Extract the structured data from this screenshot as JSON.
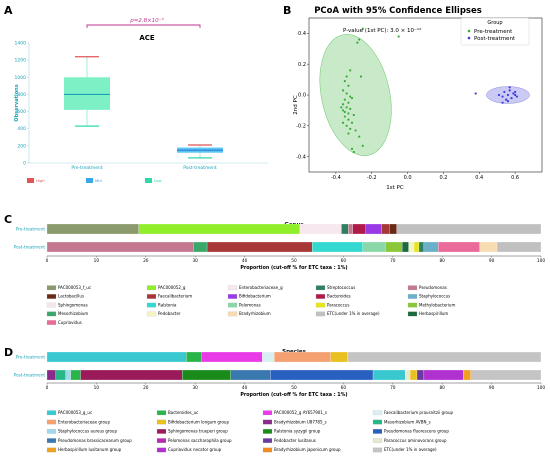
{
  "colors": {
    "cyan_text": "#1aa3b8",
    "box_green": "#7ef0c5",
    "box_median": "#1aa3b8",
    "box_blue": "#5cc6f2",
    "red_whisker": "#e0545a",
    "bracket_magenta": "#c0308c",
    "pre_green": "#3aaa3a",
    "ellipse_green": "#9ad99a",
    "post_blue": "#3a3ae0",
    "ellipse_blue": "#b8b8f0"
  },
  "panels": {
    "a": "A",
    "b": "B",
    "c": "C",
    "d": "D"
  },
  "chart_data": [
    {
      "id": "ace",
      "type": "box",
      "title": "ACE",
      "ylabel": "Observations",
      "categories": [
        "Pre-treatment",
        "Post-treatment"
      ],
      "ylim": [
        0,
        1400
      ],
      "yticks": [
        0,
        200,
        400,
        600,
        800,
        1000,
        1200,
        1400
      ],
      "boxes": [
        {
          "name": "Pre-treatment",
          "min": 430,
          "q1": 620,
          "median": 800,
          "q3": 1000,
          "max": 1240,
          "fill": "#7ef0c5"
        },
        {
          "name": "Post-treatment",
          "min": 60,
          "q1": 120,
          "median": 150,
          "q3": 180,
          "max": 210,
          "fill": "#5cc6f2"
        }
      ],
      "pvalue_label": "p=2.8×10⁻⁵",
      "legend": [
        "High",
        "Mid",
        "Low"
      ],
      "legend_colors": [
        "#e0545a",
        "#3aa8e8",
        "#2fd8a8"
      ]
    },
    {
      "id": "pcoa",
      "type": "scatter",
      "title": "PCoA with 95% Confidence Ellipses",
      "xlabel": "1st PC",
      "ylabel": "2nd PC",
      "annotation": "P-value (1st PC): 3.0 × 10⁻¹²",
      "xlim": [
        -0.55,
        0.75
      ],
      "ylim": [
        -0.5,
        0.5
      ],
      "xticks": [
        -0.4,
        -0.2,
        0.0,
        0.2,
        0.4,
        0.6
      ],
      "yticks": [
        -0.4,
        -0.2,
        0.0,
        0.2,
        0.4
      ],
      "legend_title": "Group",
      "series": [
        {
          "name": "Pre-treatment",
          "color": "#3aaa3a",
          "points": [
            [
              -0.25,
              0.43
            ],
            [
              -0.27,
              0.36
            ],
            [
              -0.28,
              0.34
            ],
            [
              -0.32,
              0.16
            ],
            [
              -0.34,
              0.12
            ],
            [
              -0.35,
              0.09
            ],
            [
              -0.33,
              0.06
            ],
            [
              -0.36,
              0.03
            ],
            [
              -0.34,
              0.01
            ],
            [
              -0.32,
              -0.01
            ],
            [
              -0.35,
              -0.03
            ],
            [
              -0.33,
              -0.05
            ],
            [
              -0.36,
              -0.06
            ],
            [
              -0.34,
              -0.08
            ],
            [
              -0.32,
              -0.09
            ],
            [
              -0.35,
              -0.11
            ],
            [
              -0.33,
              -0.12
            ],
            [
              -0.3,
              -0.13
            ],
            [
              -0.35,
              -0.14
            ],
            [
              -0.33,
              -0.16
            ],
            [
              -0.31,
              -0.18
            ],
            [
              -0.34,
              -0.2
            ],
            [
              -0.32,
              -0.22
            ],
            [
              -0.29,
              -0.23
            ],
            [
              -0.33,
              -0.25
            ],
            [
              -0.27,
              -0.27
            ],
            [
              -0.25,
              -0.33
            ],
            [
              -0.31,
              -0.35
            ],
            [
              -0.3,
              -0.37
            ],
            [
              -0.37,
              -0.08
            ],
            [
              -0.36,
              -0.1
            ],
            [
              -0.05,
              0.38
            ],
            [
              -0.26,
              0.12
            ],
            [
              -0.36,
              -0.18
            ],
            [
              -0.31,
              -0.02
            ]
          ],
          "ellipse": {
            "cx": -0.29,
            "cy": 0.0,
            "rx": 0.19,
            "ry": 0.4,
            "angle": -12
          }
        },
        {
          "name": "Post-treatment",
          "color": "#3a3ae0",
          "points": [
            [
              0.38,
              0.01
            ],
            [
              0.51,
              0.0
            ],
            [
              0.53,
              -0.01
            ],
            [
              0.54,
              0.02
            ],
            [
              0.55,
              -0.03
            ],
            [
              0.56,
              0.0
            ],
            [
              0.57,
              0.03
            ],
            [
              0.58,
              -0.02
            ],
            [
              0.59,
              0.01
            ],
            [
              0.6,
              0.0
            ],
            [
              0.61,
              -0.01
            ],
            [
              0.56,
              -0.04
            ],
            [
              0.53,
              -0.05
            ],
            [
              0.57,
              0.05
            ],
            [
              0.6,
              0.02
            ]
          ],
          "ellipse": {
            "cx": 0.56,
            "cy": 0.0,
            "rx": 0.12,
            "ry": 0.055,
            "angle": 0
          }
        }
      ]
    },
    {
      "id": "genus",
      "type": "stacked-bar-horizontal",
      "title": "Genus",
      "xlabel": "Proportion (cut-off % for ETC taxa : 1%)",
      "xlim": [
        0,
        100
      ],
      "xticks": [
        0,
        10,
        20,
        30,
        40,
        50,
        60,
        70,
        80,
        90,
        100
      ],
      "categories": [
        "Pre-treatment",
        "Post-treatment"
      ],
      "taxa": [
        {
          "name": "PAC000053_f_uc",
          "color": "#8a9a6a"
        },
        {
          "name": "PAC000052_g",
          "color": "#90ee2a"
        },
        {
          "name": "Enterobacteriaceae_g",
          "color": "#f6e8ee"
        },
        {
          "name": "Streptococcus",
          "color": "#2e8060"
        },
        {
          "name": "Pseudomonas",
          "color": "#c47890"
        },
        {
          "name": "Lactobacillus",
          "color": "#6a2a18"
        },
        {
          "name": "Faecalibacterium",
          "color": "#a83838"
        },
        {
          "name": "Bifidobacterium",
          "color": "#9a3ae6"
        },
        {
          "name": "Bacteroides",
          "color": "#b01a4a"
        },
        {
          "name": "Staphylococcus",
          "color": "#6ab0c8"
        },
        {
          "name": "Sphingomonas",
          "color": "#f4e8ec"
        },
        {
          "name": "Ralstonia",
          "color": "#33d9d0"
        },
        {
          "name": "Pelomonas",
          "color": "#8ad8a8"
        },
        {
          "name": "Paracoccus",
          "color": "#e6e61a"
        },
        {
          "name": "Methylobacterium",
          "color": "#8ac83a"
        },
        {
          "name": "Mesorhizobium",
          "color": "#3aa86a"
        },
        {
          "name": "Pedobacter",
          "color": "#f4f4c0"
        },
        {
          "name": "Bradyrhizobium",
          "color": "#f6dcb0"
        },
        {
          "name": "ETC(under 1% in average)",
          "color": "#c0c0c0"
        },
        {
          "name": "Herbaspirillum",
          "color": "#1e6a40"
        },
        {
          "name": "Cupriavidus",
          "color": "#ea6a9a"
        }
      ],
      "bars": [
        {
          "name": "Pre-treatment",
          "segments": [
            [
              "PAC000053_f_uc",
              18.6
            ],
            [
              "PAC000052_g",
              32.6
            ],
            [
              "Enterobacteriaceae_g",
              8.4
            ],
            [
              "Streptococcus",
              1.4
            ],
            [
              "Pseudomonas",
              0.9
            ],
            [
              "Bacteroides",
              2.6
            ],
            [
              "Bifidobacterium",
              3.2
            ],
            [
              "Faecalibacterium",
              1.6
            ],
            [
              "Lactobacillus",
              1.5
            ],
            [
              "ETC(under 1% in average)",
              29.2
            ]
          ]
        },
        {
          "name": "Post-treatment",
          "segments": [
            [
              "Pseudomonas",
              29.6
            ],
            [
              "Mesorhizobium",
              2.8
            ],
            [
              "Faecalibacterium",
              21.3
            ],
            [
              "Ralstonia",
              10.2
            ],
            [
              "Pelomonas",
              4.6
            ],
            [
              "Methylobacterium",
              3.4
            ],
            [
              "Herbaspirillum",
              1.3
            ],
            [
              "Pedobacter",
              1.1
            ],
            [
              "Paracoccus",
              1.0
            ],
            [
              "Streptococcus",
              1.0
            ],
            [
              "Staphylococcus",
              2.9
            ],
            [
              "Cupriavidus",
              8.4
            ],
            [
              "Bradyrhizobium",
              3.5
            ],
            [
              "ETC(under 1% in average)",
              8.9
            ]
          ]
        }
      ]
    },
    {
      "id": "species",
      "type": "stacked-bar-horizontal",
      "title": "Species",
      "xlabel": "Proportion (cut-off % for ETC taxa : 1%)",
      "xlim": [
        0,
        100
      ],
      "xticks": [
        0,
        10,
        20,
        30,
        40,
        50,
        60,
        70,
        80,
        90,
        100
      ],
      "categories": [
        "Pre-treatment",
        "Post-treatment"
      ],
      "taxa": [
        {
          "name": "PAC000053_g_uc",
          "color": "#3ac8d0"
        },
        {
          "name": "Bacteroides_uc",
          "color": "#2ab44a"
        },
        {
          "name": "PAC000052_g AY657901_s",
          "color": "#e83ae6"
        },
        {
          "name": "Faecalibacterium prausnitzii group",
          "color": "#d8f0f4"
        },
        {
          "name": "Enterobacteriaceae group",
          "color": "#f4a070"
        },
        {
          "name": "Bifidobacterium longum group",
          "color": "#e8c020"
        },
        {
          "name": "Bradyrhizobium U87785_s",
          "color": "#8a2a8a"
        },
        {
          "name": "Mesorhizobium AVBN_s",
          "color": "#28b888"
        },
        {
          "name": "Staphylococcus aureus group",
          "color": "#a0d8ec"
        },
        {
          "name": "Sphingomonas trueperi group",
          "color": "#9a1a5a"
        },
        {
          "name": "Ralstonia syzygii group",
          "color": "#1a8a1a"
        },
        {
          "name": "Pseudomonas fluorescens group",
          "color": "#2860c0"
        },
        {
          "name": "Pseudomonas brassicacearum group",
          "color": "#3a78b0"
        },
        {
          "name": "Pelomonas saccharophila group",
          "color": "#b82ab0"
        },
        {
          "name": "Pedobacter lusitanus",
          "color": "#6a3aa0"
        },
        {
          "name": "Paracoccus aminovorans group",
          "color": "#e8e8d0"
        },
        {
          "name": "Herbaspirillum lusitanum group",
          "color": "#f0a020"
        },
        {
          "name": "Cupriavidus necator group",
          "color": "#b030d0"
        },
        {
          "name": "Bradyrhizobium japonicum group",
          "color": "#f08a20"
        },
        {
          "name": "ETC(under 1% in average)",
          "color": "#c4c4c4"
        }
      ],
      "bars": [
        {
          "name": "Pre-treatment",
          "segments": [
            [
              "PAC000053_g_uc",
              28.2
            ],
            [
              "Bacteroides_uc",
              3.0
            ],
            [
              "PAC000052_g AY657901_s",
              12.4
            ],
            [
              "Faecalibacterium prausnitzii group",
              2.4
            ],
            [
              "Enterobacteriaceae group",
              11.4
            ],
            [
              "Bifidobacterium longum group",
              3.4
            ],
            [
              "ETC(under 1% in average)",
              39.2
            ]
          ]
        },
        {
          "name": "Post-treatment",
          "segments": [
            [
              "Bradyrhizobium U87785_s",
              1.8
            ],
            [
              "Mesorhizobium AVBN_s",
              2.0
            ],
            [
              "Staphylococcus aureus group",
              1.0
            ],
            [
              "Bacteroides_uc",
              2.0
            ],
            [
              "Sphingomonas trueperi group",
              20.6
            ],
            [
              "Ralstonia syzygii group",
              9.8
            ],
            [
              "Pseudomonas brassicacearum group",
              8.0
            ],
            [
              "Pseudomonas fluorescens group",
              20.8
            ],
            [
              "PAC000053_g_uc",
              6.5
            ],
            [
              "Paracoccus aminovorans group",
              1.0
            ],
            [
              "Bifidobacterium longum group",
              1.4
            ],
            [
              "Pedobacter lusitanus",
              1.4
            ],
            [
              "Cupriavidus necator group",
              8.0
            ],
            [
              "Herbaspirillum lusitanum group",
              1.5
            ],
            [
              "ETC(under 1% in average)",
              14.2
            ]
          ]
        }
      ]
    }
  ]
}
